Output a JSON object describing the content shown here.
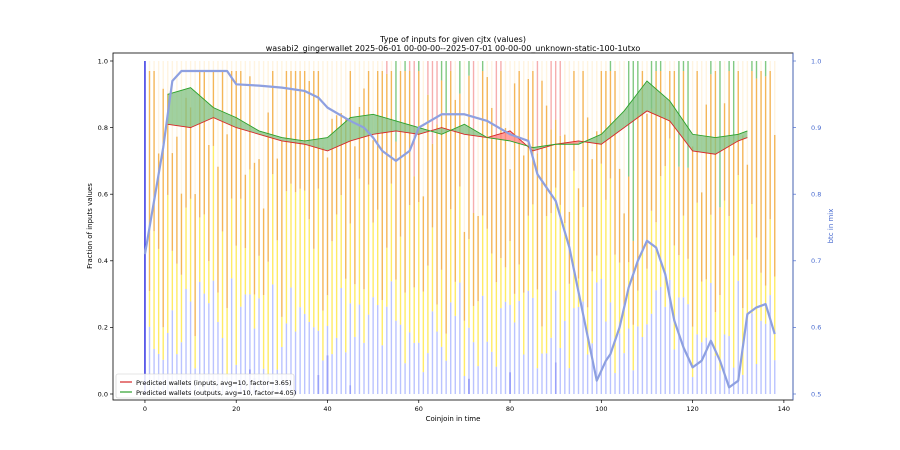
{
  "chart_data": {
    "type": "bar",
    "title": "Type of inputs for given cjtx (values)",
    "subtitle": "wasabi2_gingerwallet 2025-06-01 00-00-00--2025-07-01 00-00-00_unknown-static-100-1utxo",
    "xlabel": "Coinjoin in time",
    "ylabel": "Fraction of inputs values",
    "y2label": "btc in mix",
    "xlim": [
      -7,
      142
    ],
    "ylim": [
      0,
      1.0
    ],
    "y2lim": [
      0.495,
      1.0
    ],
    "xticks": [
      "0",
      "20",
      "40",
      "60",
      "80",
      "100",
      "120",
      "140"
    ],
    "yticks": [
      "0.0",
      "0.2",
      "0.4",
      "0.6",
      "0.8",
      "1.0"
    ],
    "y2ticks": [
      "0.5",
      "0.6",
      "0.7",
      "0.8",
      "0.9",
      "1.0"
    ],
    "legend_position": "bottom-left",
    "grid": false,
    "colors": {
      "inputs_band": "#ff8080",
      "inputs_edge": "#d62728",
      "outputs_band": "#80c080",
      "outputs_edge": "#2ca02c",
      "btc_line": "#8ea0e0",
      "fresh_bar": "#0000dd",
      "orange_bar": "#f2a93b",
      "yellow_bar": "#ffe84a",
      "lightblue_bar": "#aeb8ff",
      "cream_bar": "#fff3dd",
      "red_bar": "#f4a0a0",
      "green_bar": "#6cbf6c"
    },
    "legend": [
      {
        "label": "Predicted wallets (inputs, avg=10, factor=3.65)",
        "color": "#d62728"
      },
      {
        "label": "Predicted wallets (outputs, avg=10, factor=4.05)",
        "color": "#2ca02c"
      }
    ],
    "series": [
      {
        "name": "Predicted wallets (inputs, avg=10, factor=3.65)",
        "x": [
          5,
          10,
          15,
          20,
          25,
          30,
          35,
          40,
          45,
          50,
          55,
          60,
          65,
          70,
          75,
          80,
          85,
          90,
          95,
          100,
          105,
          110,
          115,
          120,
          125,
          130,
          132
        ],
        "values": [
          0.81,
          0.8,
          0.83,
          0.8,
          0.78,
          0.76,
          0.75,
          0.73,
          0.76,
          0.78,
          0.79,
          0.78,
          0.8,
          0.78,
          0.77,
          0.79,
          0.73,
          0.75,
          0.76,
          0.75,
          0.8,
          0.85,
          0.82,
          0.73,
          0.72,
          0.76,
          0.77
        ]
      },
      {
        "name": "Predicted wallets (outputs, avg=10, factor=4.05)",
        "x": [
          5,
          10,
          15,
          20,
          25,
          30,
          35,
          40,
          45,
          50,
          55,
          60,
          65,
          70,
          75,
          80,
          85,
          90,
          95,
          100,
          105,
          110,
          115,
          120,
          125,
          130,
          132
        ],
        "values": [
          0.9,
          0.92,
          0.86,
          0.83,
          0.79,
          0.77,
          0.76,
          0.77,
          0.83,
          0.84,
          0.82,
          0.8,
          0.78,
          0.81,
          0.77,
          0.76,
          0.74,
          0.75,
          0.75,
          0.78,
          0.85,
          0.94,
          0.88,
          0.78,
          0.77,
          0.78,
          0.79
        ]
      },
      {
        "name": "btc in mix",
        "x": [
          0,
          2,
          4,
          6,
          8,
          10,
          15,
          18,
          20,
          25,
          30,
          35,
          38,
          40,
          45,
          48,
          50,
          52,
          55,
          58,
          60,
          65,
          70,
          75,
          80,
          84,
          86,
          90,
          93,
          96,
          99,
          101,
          102,
          104,
          106,
          108,
          110,
          112,
          114,
          116,
          118,
          120,
          122,
          124,
          126,
          128,
          130,
          132,
          134,
          136,
          138
        ],
        "values": [
          0.71,
          0.79,
          0.87,
          0.97,
          0.985,
          0.985,
          0.985,
          0.985,
          0.965,
          0.963,
          0.96,
          0.955,
          0.945,
          0.93,
          0.91,
          0.9,
          0.885,
          0.865,
          0.85,
          0.865,
          0.9,
          0.92,
          0.92,
          0.91,
          0.89,
          0.88,
          0.83,
          0.79,
          0.72,
          0.62,
          0.52,
          0.55,
          0.56,
          0.6,
          0.66,
          0.7,
          0.73,
          0.72,
          0.68,
          0.61,
          0.57,
          0.54,
          0.55,
          0.58,
          0.55,
          0.51,
          0.52,
          0.62,
          0.63,
          0.635,
          0.59
        ]
      }
    ]
  }
}
